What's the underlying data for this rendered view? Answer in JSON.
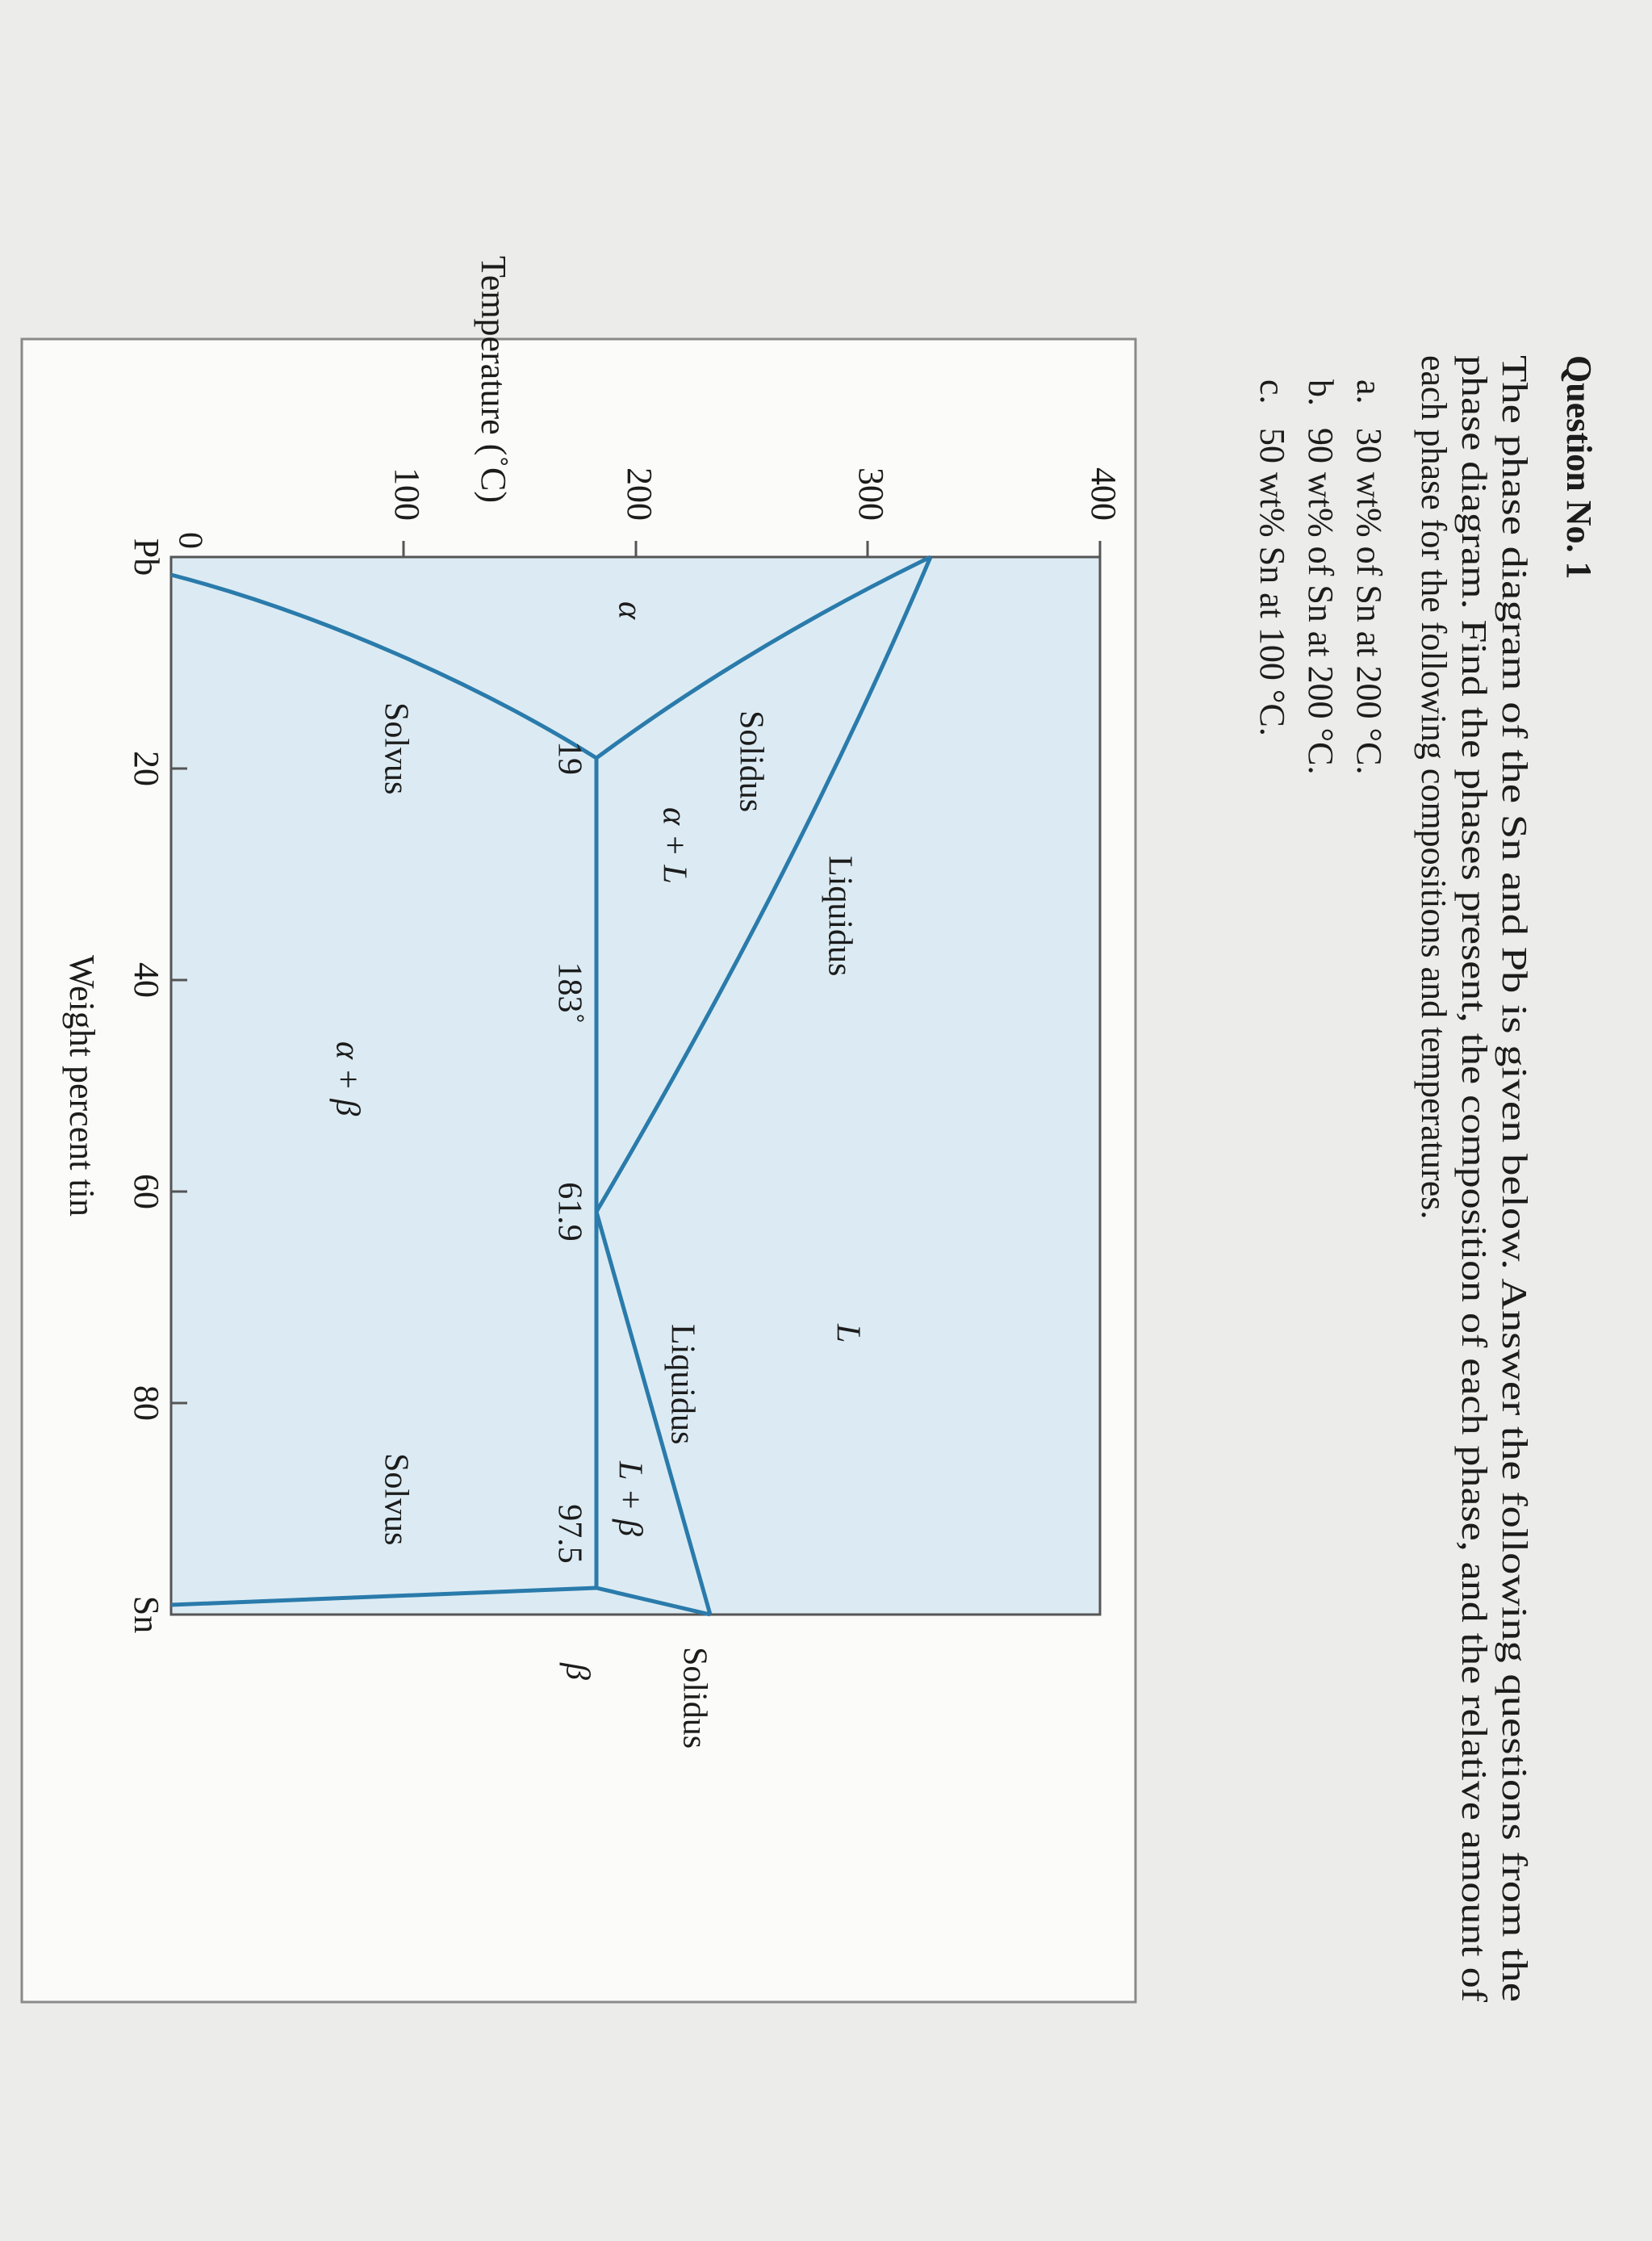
{
  "question": {
    "title": "Question No. 1",
    "text": [
      "The phase diagram of the Sn and Pb is given below. Answer the following questions from the",
      "phase diagram. Find the phases present, the composition of each phase, and the relative amount of",
      "each phase for the following compositions and temperatures."
    ],
    "items": [
      {
        "marker": "a.",
        "text": "30 wt% of Sn at 200 °C."
      },
      {
        "marker": "b.",
        "text": "90 wt% of Sn at 200 °C."
      },
      {
        "marker": "c.",
        "text": "50 wt% Sn at 100 °C."
      }
    ]
  },
  "diagram": {
    "y_axis_title": "Temperature (˚C)",
    "y_ticks": [
      "400",
      "300",
      "200",
      "100",
      "0"
    ],
    "x_ticks": [
      "Pb",
      "20",
      "40",
      "60",
      "80",
      "Sn"
    ],
    "x_axis_title": "Weight percent tin",
    "labels": [
      "L",
      "Liquidus",
      "Solidus",
      "α + L",
      "α",
      "19",
      "183˚",
      "61.9",
      "Liquidus",
      "L + β",
      "97.5",
      "Solidus",
      "β",
      "Solvus",
      "α + β",
      "Solvus"
    ]
  }
}
